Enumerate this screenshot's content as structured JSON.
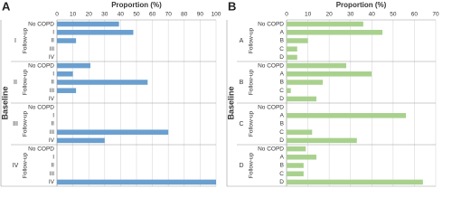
{
  "chart_data": [
    {
      "type": "bar",
      "panel": "A",
      "title": "Proportion (%)",
      "y_label": "Baseline",
      "color": "#6a9fcf",
      "xlim": [
        0,
        100
      ],
      "xticks": [
        0,
        10,
        20,
        30,
        40,
        50,
        60,
        70,
        80,
        90,
        100
      ],
      "grid": true,
      "groups": [
        {
          "name": "I",
          "label": "Follow-up",
          "categories": [
            "No COPD",
            "I",
            "II",
            "III",
            "IV"
          ],
          "values": [
            39,
            48,
            12,
            0,
            0
          ]
        },
        {
          "name": "II",
          "label": "Follow-up",
          "categories": [
            "No COPD",
            "I",
            "II",
            "III",
            "IV"
          ],
          "values": [
            21,
            10,
            57,
            12,
            0
          ]
        },
        {
          "name": "III",
          "label": "Follow-up",
          "categories": [
            "No COPD",
            "I",
            "II",
            "III",
            "IV"
          ],
          "values": [
            0,
            0,
            0,
            70,
            30
          ]
        },
        {
          "name": "IV",
          "label": "Follow-up",
          "categories": [
            "No COPD",
            "I",
            "II",
            "III",
            "IV"
          ],
          "values": [
            0,
            0,
            0,
            0,
            100
          ]
        }
      ]
    },
    {
      "type": "bar",
      "panel": "B",
      "title": "Proportion (%)",
      "y_label": "Baseline",
      "color": "#a9d18e",
      "xlim": [
        0,
        70
      ],
      "xticks": [
        0,
        10,
        20,
        30,
        40,
        50,
        60,
        70
      ],
      "grid": true,
      "groups": [
        {
          "name": "A",
          "label": "Follow-up",
          "categories": [
            "No COPD",
            "A",
            "B",
            "C",
            "D"
          ],
          "values": [
            36,
            45,
            10,
            5,
            5
          ]
        },
        {
          "name": "B",
          "label": "Follow-up",
          "categories": [
            "No COPD",
            "A",
            "B",
            "C",
            "D"
          ],
          "values": [
            28,
            40,
            17,
            2,
            14
          ]
        },
        {
          "name": "C",
          "label": "Follow-up",
          "categories": [
            "No COPD",
            "A",
            "B",
            "C",
            "D"
          ],
          "values": [
            0,
            56,
            0,
            12,
            33
          ]
        },
        {
          "name": "D",
          "label": "Follow-up",
          "categories": [
            "No COPD",
            "A",
            "B",
            "C",
            "D"
          ],
          "values": [
            9,
            14,
            8,
            8,
            64
          ]
        }
      ]
    }
  ]
}
